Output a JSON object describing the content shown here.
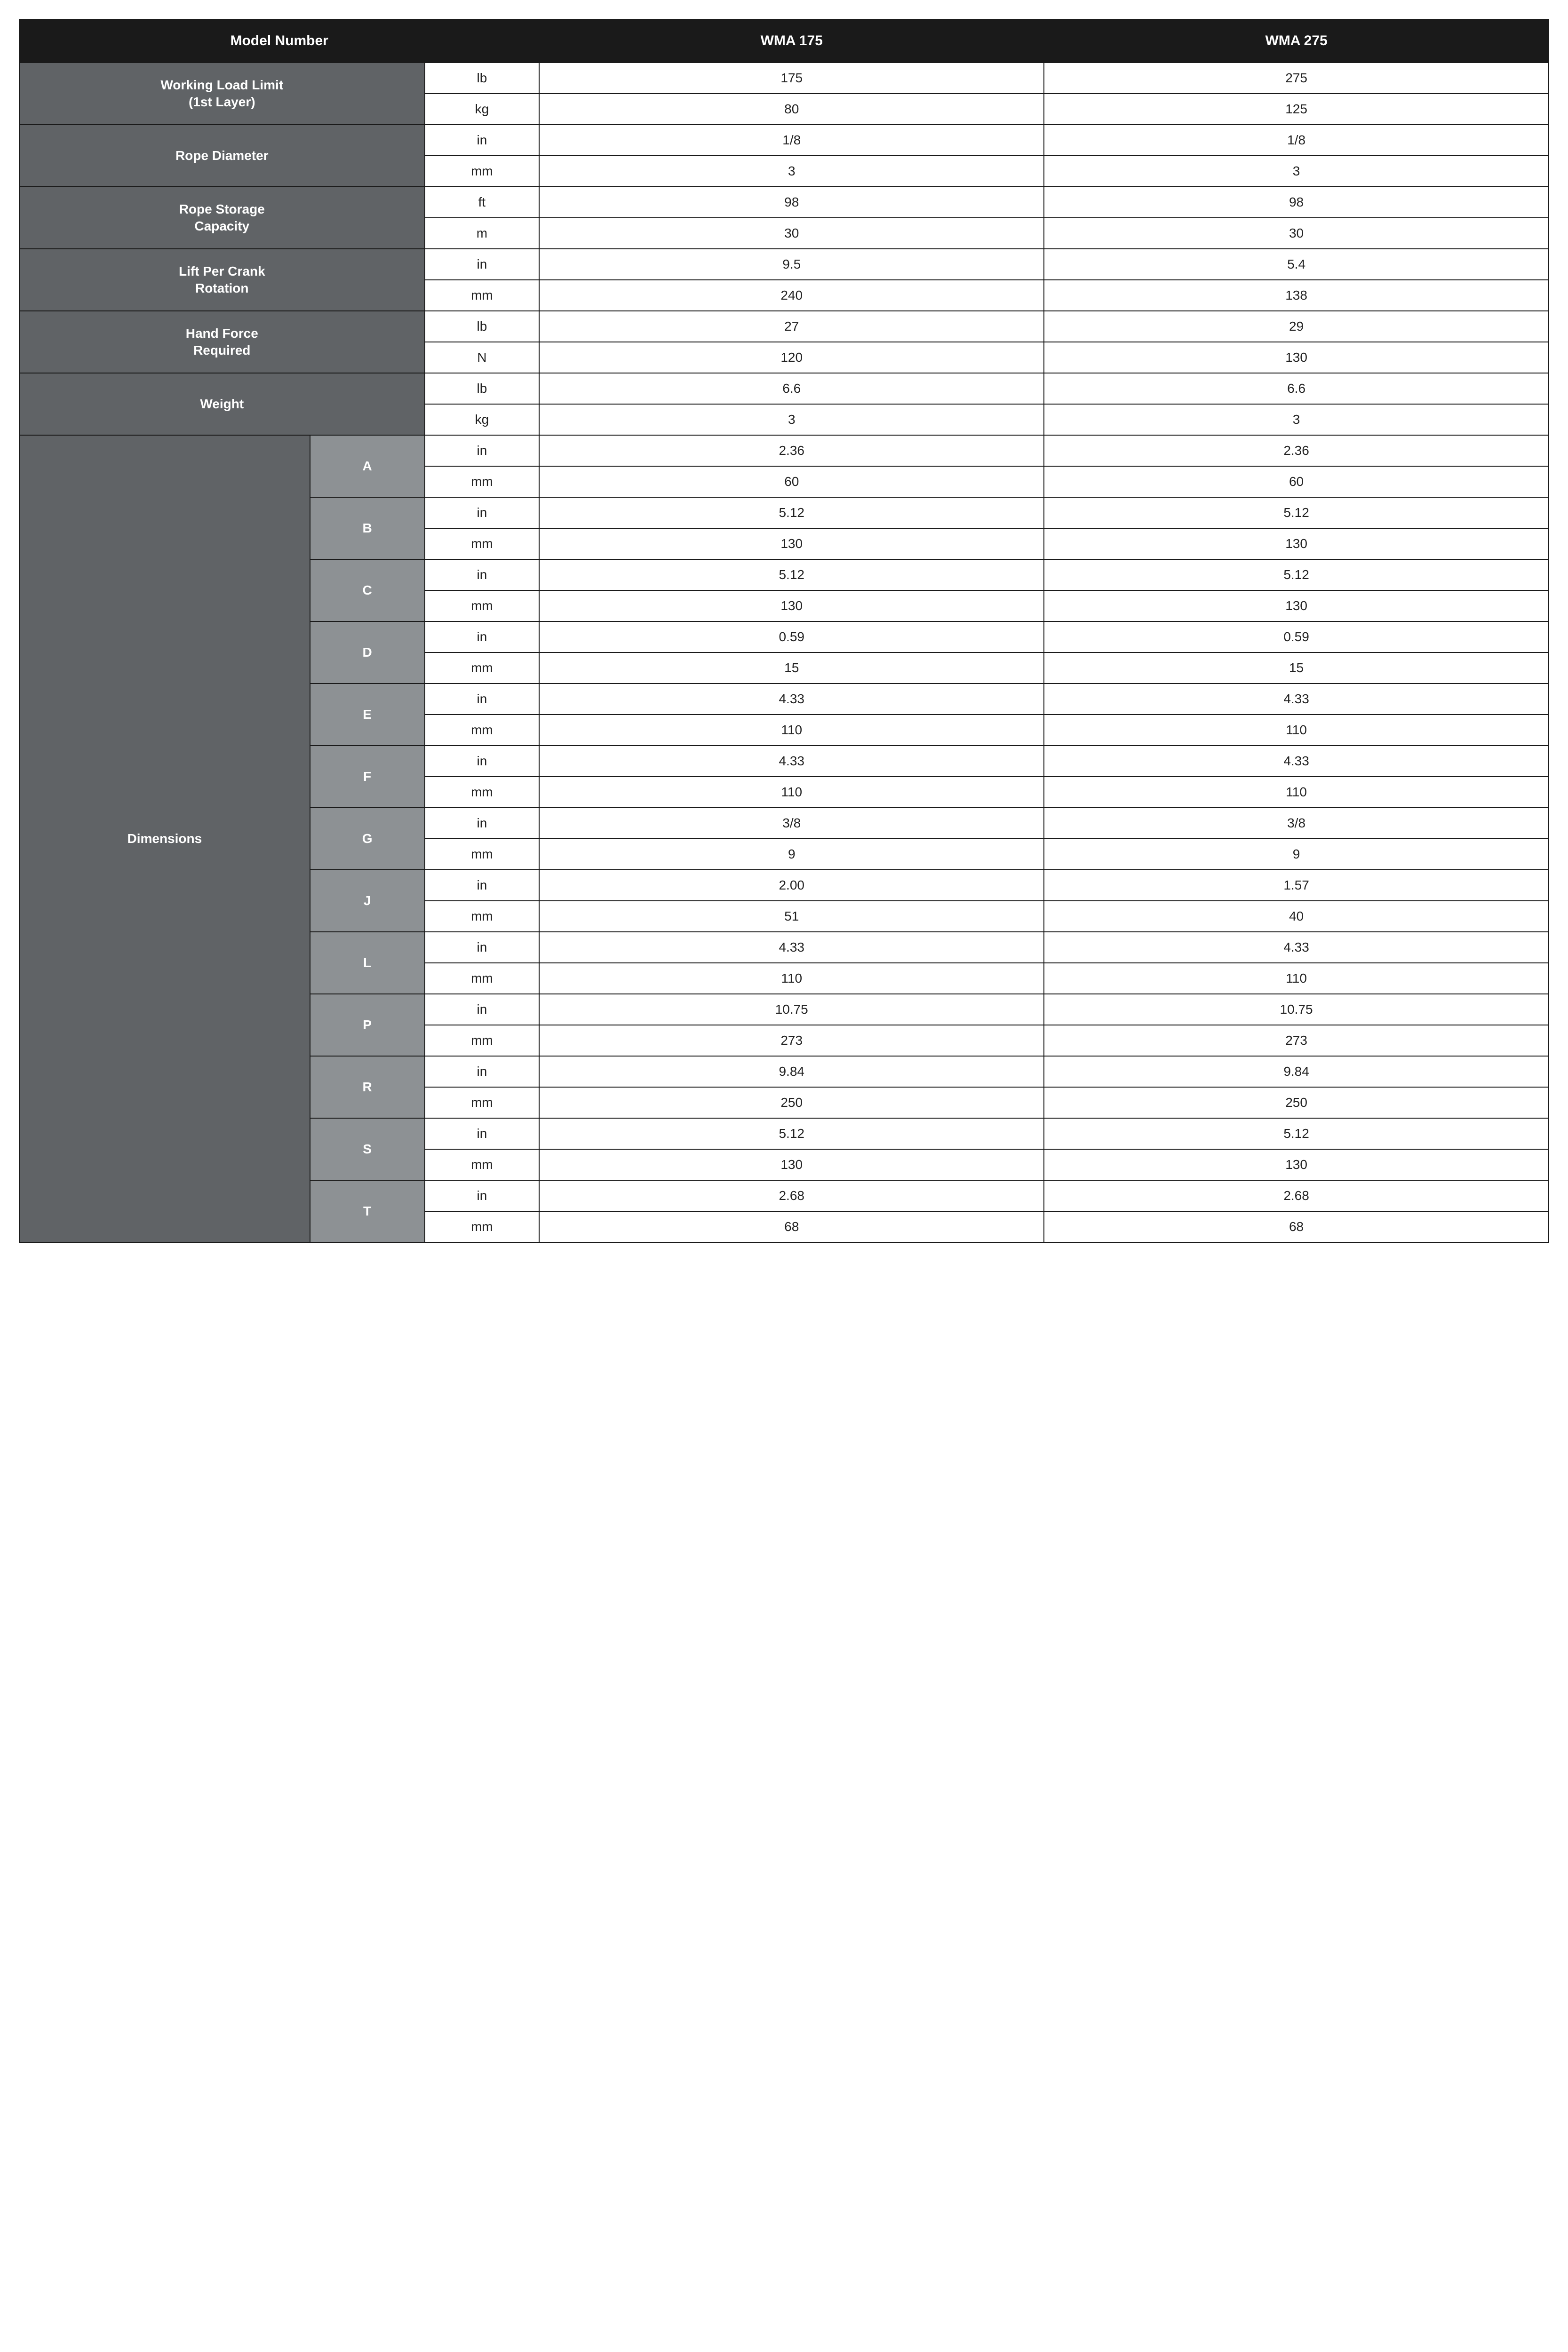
{
  "colors": {
    "header_bg": "#1a1a1a",
    "spec_label_bg": "#606366",
    "dim_letter_bg": "#8d9194",
    "cell_bg": "#ffffff",
    "border": "#1a1a1a",
    "header_text": "#ffffff",
    "cell_text": "#222222"
  },
  "typography": {
    "font_family": "Arial, Helvetica, sans-serif",
    "header_fontsize_pt": 22,
    "label_fontsize_pt": 21,
    "cell_fontsize_pt": 21,
    "header_fontweight": "bold",
    "label_fontweight": "bold"
  },
  "header": {
    "model_number_label": "Model Number",
    "model1": "WMA 175",
    "model2": "WMA 275"
  },
  "specs": [
    {
      "label": "Working Load Limit\n(1st Layer)",
      "units": [
        "lb",
        "kg"
      ],
      "model1": [
        "175",
        "80"
      ],
      "model2": [
        "275",
        "125"
      ]
    },
    {
      "label": "Rope Diameter",
      "units": [
        "in",
        "mm"
      ],
      "model1": [
        "1/8",
        "3"
      ],
      "model2": [
        "1/8",
        "3"
      ]
    },
    {
      "label": "Rope Storage\nCapacity",
      "units": [
        "ft",
        "m"
      ],
      "model1": [
        "98",
        "30"
      ],
      "model2": [
        "98",
        "30"
      ]
    },
    {
      "label": "Lift Per Crank\nRotation",
      "units": [
        "in",
        "mm"
      ],
      "model1": [
        "9.5",
        "240"
      ],
      "model2": [
        "5.4",
        "138"
      ]
    },
    {
      "label": "Hand Force\nRequired",
      "units": [
        "lb",
        "N"
      ],
      "model1": [
        "27",
        "120"
      ],
      "model2": [
        "29",
        "130"
      ]
    },
    {
      "label": "Weight",
      "units": [
        "lb",
        "kg"
      ],
      "model1": [
        "6.6",
        "3"
      ],
      "model2": [
        "6.6",
        "3"
      ]
    }
  ],
  "dimensions": {
    "label": "Dimensions",
    "rows": [
      {
        "letter": "A",
        "units": [
          "in",
          "mm"
        ],
        "model1": [
          "2.36",
          "60"
        ],
        "model2": [
          "2.36",
          "60"
        ]
      },
      {
        "letter": "B",
        "units": [
          "in",
          "mm"
        ],
        "model1": [
          "5.12",
          "130"
        ],
        "model2": [
          "5.12",
          "130"
        ]
      },
      {
        "letter": "C",
        "units": [
          "in",
          "mm"
        ],
        "model1": [
          "5.12",
          "130"
        ],
        "model2": [
          "5.12",
          "130"
        ]
      },
      {
        "letter": "D",
        "units": [
          "in",
          "mm"
        ],
        "model1": [
          "0.59",
          "15"
        ],
        "model2": [
          "0.59",
          "15"
        ]
      },
      {
        "letter": "E",
        "units": [
          "in",
          "mm"
        ],
        "model1": [
          "4.33",
          "110"
        ],
        "model2": [
          "4.33",
          "110"
        ]
      },
      {
        "letter": "F",
        "units": [
          "in",
          "mm"
        ],
        "model1": [
          "4.33",
          "110"
        ],
        "model2": [
          "4.33",
          "110"
        ]
      },
      {
        "letter": "G",
        "units": [
          "in",
          "mm"
        ],
        "model1": [
          "3/8",
          "9"
        ],
        "model2": [
          "3/8",
          "9"
        ]
      },
      {
        "letter": "J",
        "units": [
          "in",
          "mm"
        ],
        "model1": [
          "2.00",
          "51"
        ],
        "model2": [
          "1.57",
          "40"
        ]
      },
      {
        "letter": "L",
        "units": [
          "in",
          "mm"
        ],
        "model1": [
          "4.33",
          "110"
        ],
        "model2": [
          "4.33",
          "110"
        ]
      },
      {
        "letter": "P",
        "units": [
          "in",
          "mm"
        ],
        "model1": [
          "10.75",
          "273"
        ],
        "model2": [
          "10.75",
          "273"
        ]
      },
      {
        "letter": "R",
        "units": [
          "in",
          "mm"
        ],
        "model1": [
          "9.84",
          "250"
        ],
        "model2": [
          "9.84",
          "250"
        ]
      },
      {
        "letter": "S",
        "units": [
          "in",
          "mm"
        ],
        "model1": [
          "5.12",
          "130"
        ],
        "model2": [
          "5.12",
          "130"
        ]
      },
      {
        "letter": "T",
        "units": [
          "in",
          "mm"
        ],
        "model1": [
          "2.68",
          "68"
        ],
        "model2": [
          "2.68",
          "68"
        ]
      }
    ]
  }
}
